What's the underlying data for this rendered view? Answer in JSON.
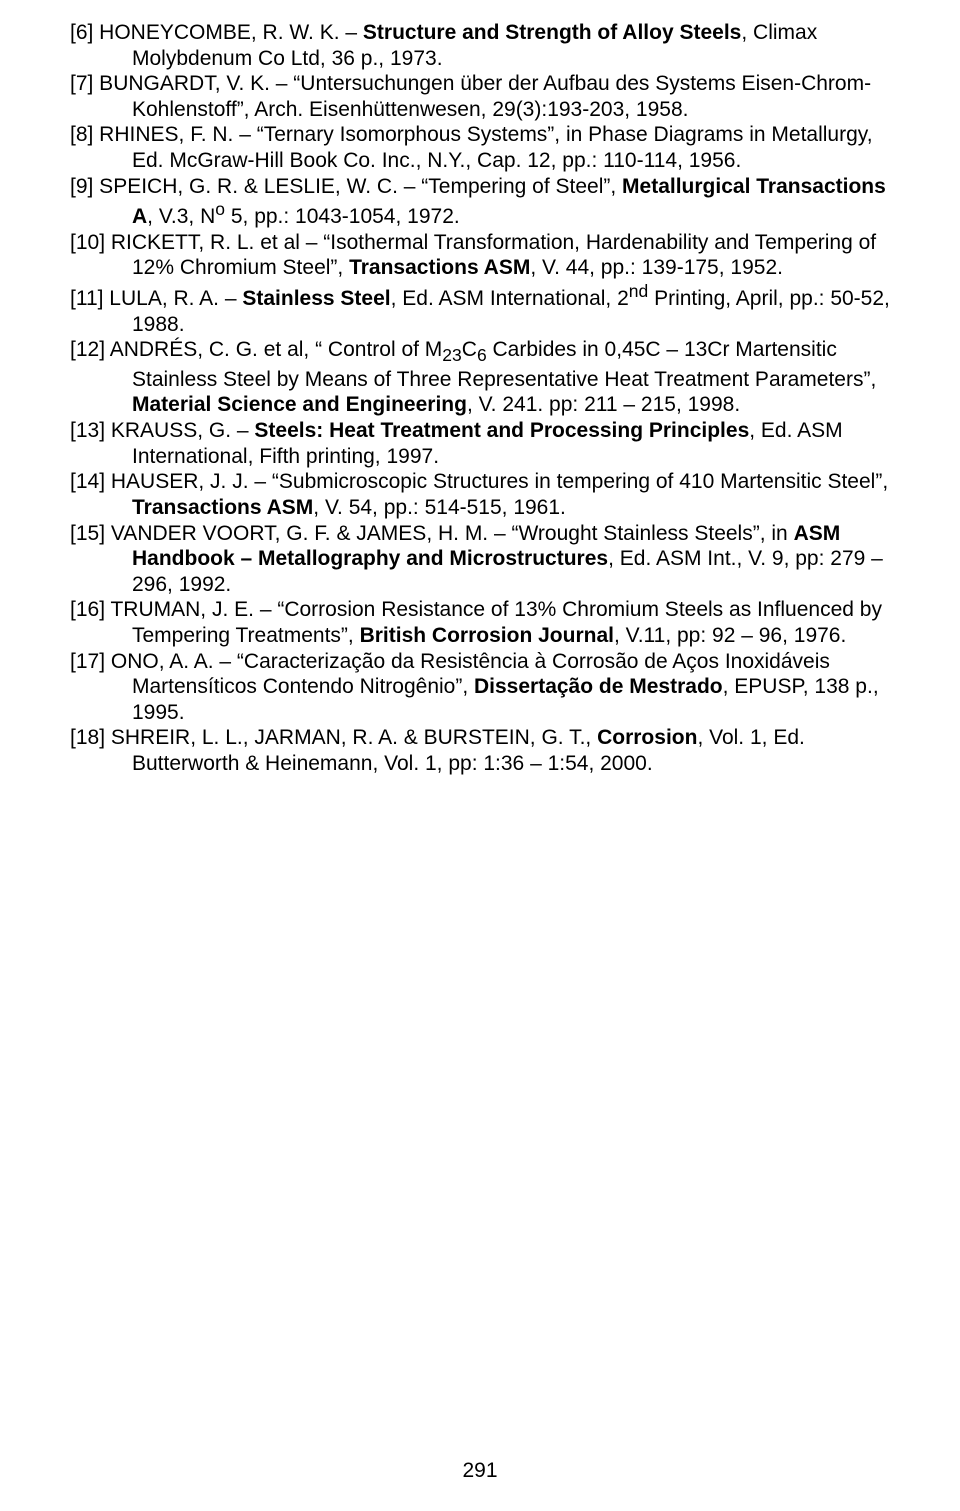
{
  "refs": [
    {
      "html": "[6] HONEYCOMBE, R. W. K. – <b>Structure and Strength of Alloy Steels</b>, Climax Molybdenum Co Ltd, 36 p., 1973."
    },
    {
      "html": "[7] BUNGARDT, V. K. – “Untersuchungen über der Aufbau des Systems Eisen-Chrom-Kohlenstoff”, Arch. Eisenhüttenwesen, 29(3):193-203, 1958."
    },
    {
      "html": "[8] RHINES, F. N. – “Ternary Isomorphous Systems”, in Phase Diagrams in Metallurgy, Ed. McGraw-Hill Book Co. Inc., N.Y., Cap. 12, pp.: 110-114, 1956."
    },
    {
      "html": "[9] SPEICH, G. R. & LESLIE, W. C. – “Tempering of Steel”, <b>Metallurgical Transactions A</b>, V.3, N<sup>o</sup> 5, pp.: 1043-1054, 1972."
    },
    {
      "html": "[10] RICKETT, R. L. et al – “Isothermal Transformation, Hardenability and Tempering of 12% Chromium Steel”, <b>Transactions ASM</b>, V. 44, pp.: 139-175, 1952."
    },
    {
      "html": "[11] LULA, R. A. – <b>Stainless Steel</b>, Ed. ASM International, 2<sup>nd</sup> Printing, April, pp.: 50-52, 1988."
    },
    {
      "html": "[12] ANDRÉS, C. G. et al, “ Control of M<sub>23</sub>C<sub>6</sub> Carbides in 0,45C – 13Cr Martensitic Stainless Steel by Means of Three Representative Heat Treatment Parameters”, <b>Material Science and Engineering</b>, V. 241. pp: 211 – 215, 1998."
    },
    {
      "html": "[13] KRAUSS, G. – <b>Steels: Heat Treatment and Processing Principles</b>, Ed. ASM International, Fifth printing, 1997."
    },
    {
      "html": "[14] HAUSER, J. J. – “Submicroscopic Structures in tempering of 410 Martensitic Steel”, <b>Transactions ASM</b>, V. 54, pp.: 514-515, 1961."
    },
    {
      "html": "[15] VANDER VOORT, G. F. & JAMES, H. M. – “Wrought Stainless Steels”, in <b>ASM Handbook – Metallography and Microstructures</b>, Ed. ASM Int., V. 9, pp: 279 – 296, 1992."
    },
    {
      "html": "[16] TRUMAN, J. E. – “Corrosion Resistance of 13% Chromium Steels as Influenced by Tempering Treatments”, <b>British Corrosion Journal</b>, V.11, pp: 92 – 96, 1976."
    },
    {
      "html": "[17] ONO, A. A. – “Caracterização da Resistência à Corrosão de Aços Inoxidáveis Martensíticos Contendo Nitrogênio”, <b>Dissertação de Mestrado</b>, EPUSP, 138 p., 1995."
    },
    {
      "html": "[18] SHREIR, L. L., JARMAN, R. A. & BURSTEIN, G. T., <b>Corrosion</b>, Vol. 1, Ed. Butterworth & Heinemann, Vol. 1, pp: 1:36 – 1:54, 2000."
    }
  ],
  "page_number": "291"
}
